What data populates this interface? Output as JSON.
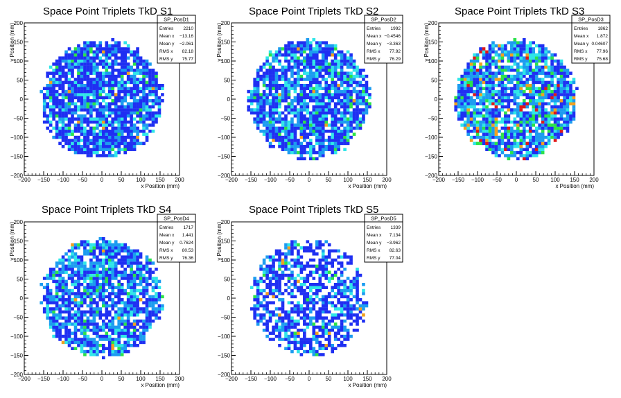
{
  "chart_data": [
    {
      "type": "heatmap",
      "title": "Space Point Triplets TkD S1",
      "xlabel": "x Position (mm)",
      "ylabel": "y Position (mm)",
      "xlim": [
        -200,
        200
      ],
      "ylim": [
        -200,
        200
      ],
      "xticks": [
        "−200",
        "−150",
        "−100",
        "−50",
        "0",
        "50",
        "100",
        "150",
        "200"
      ],
      "yticks": [
        "−200",
        "−150",
        "−100",
        "−50",
        "0",
        "50",
        "100",
        "150",
        "200"
      ],
      "stats": {
        "name": "SP_PosD1",
        "rows": [
          [
            "Entries",
            "2210"
          ],
          [
            "Mean x",
            "−13.16"
          ],
          [
            "Mean y",
            "−2.061"
          ],
          [
            "RMS x",
            "82.18"
          ],
          [
            "RMS y",
            "75.77"
          ]
        ]
      },
      "disk_radius_mm": 155,
      "density": 0.86,
      "level_weights": [
        0.62,
        0.22,
        0.12,
        0.03,
        0.01,
        0.0
      ]
    },
    {
      "type": "heatmap",
      "title": "Space Point Triplets TkD S2",
      "xlabel": "x Position (mm)",
      "ylabel": "y Position (mm)",
      "xlim": [
        -200,
        200
      ],
      "ylim": [
        -200,
        200
      ],
      "xticks": [
        "−200",
        "−150",
        "−100",
        "−50",
        "0",
        "50",
        "100",
        "150",
        "200"
      ],
      "yticks": [
        "−200",
        "−150",
        "−100",
        "−50",
        "0",
        "50",
        "100",
        "150",
        "200"
      ],
      "stats": {
        "name": "SP_PosD2",
        "rows": [
          [
            "Entries",
            "1992"
          ],
          [
            "Mean x",
            "−0.4546"
          ],
          [
            "Mean y",
            "−3.363"
          ],
          [
            "RMS x",
            "77.92"
          ],
          [
            "RMS y",
            "76.29"
          ]
        ]
      },
      "disk_radius_mm": 155,
      "density": 0.82,
      "level_weights": [
        0.55,
        0.25,
        0.15,
        0.04,
        0.01,
        0.0
      ]
    },
    {
      "type": "heatmap",
      "title": "Space Point Triplets TkD S3",
      "xlabel": "x Position (mm)",
      "ylabel": "y Position (mm)",
      "xlim": [
        -200,
        200
      ],
      "ylim": [
        -200,
        200
      ],
      "xticks": [
        "−200",
        "−150",
        "−100",
        "−50",
        "0",
        "50",
        "100",
        "150",
        "200"
      ],
      "yticks": [
        "−200",
        "−150",
        "−100",
        "−50",
        "0",
        "50",
        "100",
        "150",
        "200"
      ],
      "stats": {
        "name": "SP_PosD3",
        "rows": [
          [
            "Entries",
            "1862"
          ],
          [
            "Mean x",
            "1.872"
          ],
          [
            "Mean y",
            "0.04607"
          ],
          [
            "RMS x",
            "77.96"
          ],
          [
            "RMS y",
            "75.68"
          ]
        ]
      },
      "disk_radius_mm": 155,
      "density": 0.84,
      "level_weights": [
        0.34,
        0.3,
        0.18,
        0.1,
        0.05,
        0.03
      ]
    },
    {
      "type": "heatmap",
      "title": "Space Point Triplets TkD S4",
      "xlabel": "x Position (mm)",
      "ylabel": "y Position (mm)",
      "xlim": [
        -200,
        200
      ],
      "ylim": [
        -200,
        200
      ],
      "xticks": [
        "−200",
        "−150",
        "−100",
        "−50",
        "0",
        "50",
        "100",
        "150",
        "200"
      ],
      "yticks": [
        "−200",
        "−150",
        "−100",
        "−50",
        "0",
        "50",
        "100",
        "150",
        "200"
      ],
      "stats": {
        "name": "SP_PosD4",
        "rows": [
          [
            "Entries",
            "1717"
          ],
          [
            "Mean x",
            "1.441"
          ],
          [
            "Mean y",
            "0.7624"
          ],
          [
            "RMS x",
            "80.53"
          ],
          [
            "RMS y",
            "76.36"
          ]
        ]
      },
      "disk_radius_mm": 155,
      "density": 0.8,
      "level_weights": [
        0.5,
        0.3,
        0.15,
        0.04,
        0.01,
        0.0
      ]
    },
    {
      "type": "heatmap",
      "title": "Space Point Triplets TkD S5",
      "xlabel": "x Position (mm)",
      "ylabel": "y Position (mm)",
      "xlim": [
        -200,
        200
      ],
      "ylim": [
        -200,
        200
      ],
      "xticks": [
        "−200",
        "−150",
        "−100",
        "−50",
        "0",
        "50",
        "100",
        "150",
        "200"
      ],
      "yticks": [
        "−200",
        "−150",
        "−100",
        "−50",
        "0",
        "50",
        "100",
        "150",
        "200"
      ],
      "stats": {
        "name": "SP_PosD5",
        "rows": [
          [
            "Entries",
            "1339"
          ],
          [
            "Mean x",
            "7.134"
          ],
          [
            "Mean y",
            "−3.962"
          ],
          [
            "RMS x",
            "82.63"
          ],
          [
            "RMS y",
            "77.04"
          ]
        ]
      },
      "disk_radius_mm": 150,
      "density": 0.62,
      "level_weights": [
        0.68,
        0.2,
        0.09,
        0.02,
        0.01,
        0.0
      ]
    }
  ],
  "colors": {
    "levels": [
      "#1f2ff2",
      "#1c9cf0",
      "#2fe6e8",
      "#2be24a",
      "#f0a020",
      "#e01818"
    ],
    "axis": "#000000",
    "background": "#ffffff"
  }
}
